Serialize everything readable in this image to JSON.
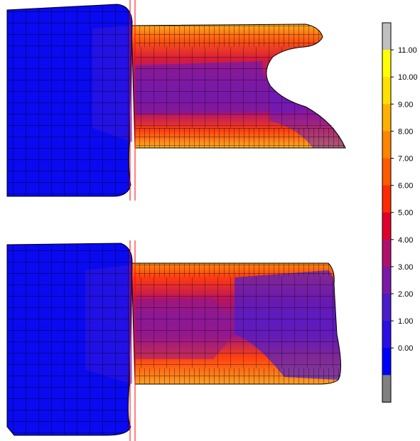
{
  "color_scale": {
    "labels": [
      "11.00",
      "10.00",
      "9.00",
      "8.00",
      "7.00",
      "6.00",
      "5.00",
      "4.00",
      "3.00",
      "2.00",
      "1.00",
      "0.00"
    ],
    "bands_top_to_bottom": [
      "#c0c0c0",
      "#ffff00",
      "#ffe000",
      "#ffb000",
      "#ff8400",
      "#ff5a00",
      "#ff2a00",
      "#e0002a",
      "#b0106c",
      "#7c18a6",
      "#4a1ccc",
      "#2a10e6",
      "#0000ff",
      "#808080"
    ]
  },
  "mesh_colors": {
    "base": "#0a0af0",
    "low": "#4a18d0",
    "mid": "#8a1898",
    "high": "#e0202a",
    "peak": "#ff6a10",
    "edge": "#ffae20",
    "mesh_line": "#000000",
    "die_line": "#ff0000"
  }
}
